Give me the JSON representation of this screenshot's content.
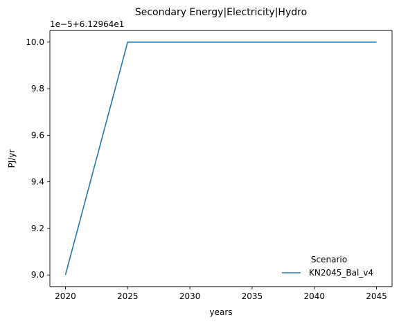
{
  "chart_data": {
    "type": "line",
    "title": "Secondary Energy|Electricity|Hydro",
    "xlabel": "years",
    "ylabel": "PJ/yr",
    "offset_label": "1e−5+6.12964e1",
    "x": [
      2020,
      2025,
      2030,
      2035,
      2040,
      2045
    ],
    "xticks": [
      "2020",
      "2025",
      "2030",
      "2035",
      "2040",
      "2045"
    ],
    "xlim": [
      2018.75,
      2046.25
    ],
    "yticks": [
      "9.0",
      "9.2",
      "9.4",
      "9.6",
      "9.8",
      "10.0"
    ],
    "ylim": [
      8.95,
      10.05
    ],
    "grid": false,
    "legend": {
      "title": "Scenario",
      "placement": "lower-right"
    },
    "series": [
      {
        "name": "KN2045_Bal_v4",
        "color": "#1f77b4",
        "values": [
          9.0,
          10.0,
          10.0,
          10.0,
          10.0,
          10.0
        ]
      }
    ]
  }
}
